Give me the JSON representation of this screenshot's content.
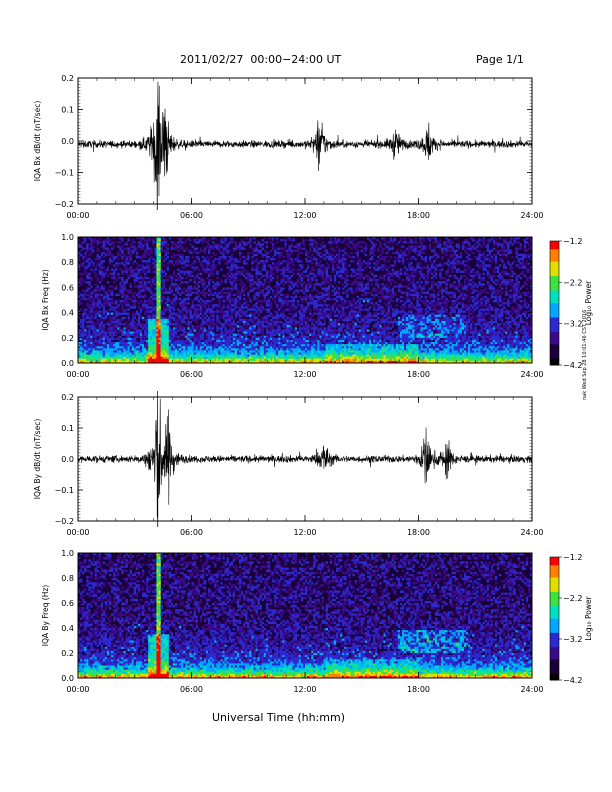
{
  "header": {
    "title": "2011/02/27  00:00−24:00 UT",
    "page": "Page 1/1"
  },
  "footer": {
    "xlabel": "Universal Time (hh:mm)",
    "side_stamp": "nak Wed Sep 28 10:01:46 CST 2016"
  },
  "colors": {
    "trace": "#000000",
    "spectro_bg": "#1a0038",
    "accent_spectral": [
      "#000000",
      "#1a0038",
      "#3a0a8a",
      "#2a2ad0",
      "#00a8ff",
      "#00e0c0",
      "#40e040",
      "#e0e000",
      "#ff8000",
      "#ff0000"
    ]
  },
  "chart_data": [
    {
      "type": "line",
      "title": "",
      "ylabel": "IQA Bx dB/dt (nT/sec)",
      "xlabel": "",
      "x_ticks": [
        "00:00",
        "06:00",
        "12:00",
        "18:00",
        "24:00"
      ],
      "x_range_hours": [
        0,
        24
      ],
      "ylim": [
        -0.2,
        0.2
      ],
      "y_ticks": [
        "0.2",
        "0.1",
        "0.0",
        "−0.1",
        "−0.2"
      ],
      "description_events": [
        {
          "t": 4.2,
          "amp": 0.2
        },
        {
          "t": 4.6,
          "amp": 0.08
        },
        {
          "t": 12.8,
          "amp": 0.08
        },
        {
          "t": 16.8,
          "amp": 0.04
        },
        {
          "t": 18.5,
          "amp": 0.05
        }
      ],
      "baseline": -0.01,
      "noise": 0.012
    },
    {
      "type": "heatmap",
      "title": "",
      "ylabel": "IQA Bx Freq (Hz)",
      "x_ticks": [
        "00:00",
        "06:00",
        "12:00",
        "18:00",
        "24:00"
      ],
      "y_ticks": [
        "1.0",
        "0.8",
        "0.6",
        "0.4",
        "0.2",
        "0.0"
      ],
      "ylim": [
        0,
        1.0
      ],
      "colorbar": {
        "label": "Log₁₀ Power",
        "ticks": [
          "−1.2",
          "−2.2",
          "−3.2",
          "−4.2"
        ],
        "range": [
          -4.2,
          -1.2
        ]
      }
    },
    {
      "type": "line",
      "title": "",
      "ylabel": "IQA By dB/dt (nT/sec)",
      "xlabel": "",
      "x_ticks": [
        "00:00",
        "06:00",
        "12:00",
        "18:00",
        "24:00"
      ],
      "x_range_hours": [
        0,
        24
      ],
      "ylim": [
        -0.2,
        0.2
      ],
      "y_ticks": [
        "0.2",
        "0.1",
        "0.0",
        "−0.1",
        "−0.2"
      ],
      "description_events": [
        {
          "t": 4.2,
          "amp": 0.22
        },
        {
          "t": 4.8,
          "amp": 0.1
        },
        {
          "t": 13.0,
          "amp": 0.05
        },
        {
          "t": 18.4,
          "amp": 0.08
        },
        {
          "t": 19.5,
          "amp": 0.05
        }
      ],
      "baseline": 0.0,
      "noise": 0.012
    },
    {
      "type": "heatmap",
      "title": "",
      "ylabel": "IQA By Freq (Hz)",
      "x_ticks": [
        "00:00",
        "06:00",
        "12:00",
        "18:00",
        "24:00"
      ],
      "y_ticks": [
        "1.0",
        "0.8",
        "0.6",
        "0.4",
        "0.2",
        "0.0"
      ],
      "ylim": [
        0,
        1.0
      ],
      "colorbar": {
        "label": "Log₁₀ Power",
        "ticks": [
          "−1.2",
          "−2.2",
          "−3.2",
          "−4.2"
        ],
        "range": [
          -4.2,
          -1.2
        ]
      }
    }
  ]
}
